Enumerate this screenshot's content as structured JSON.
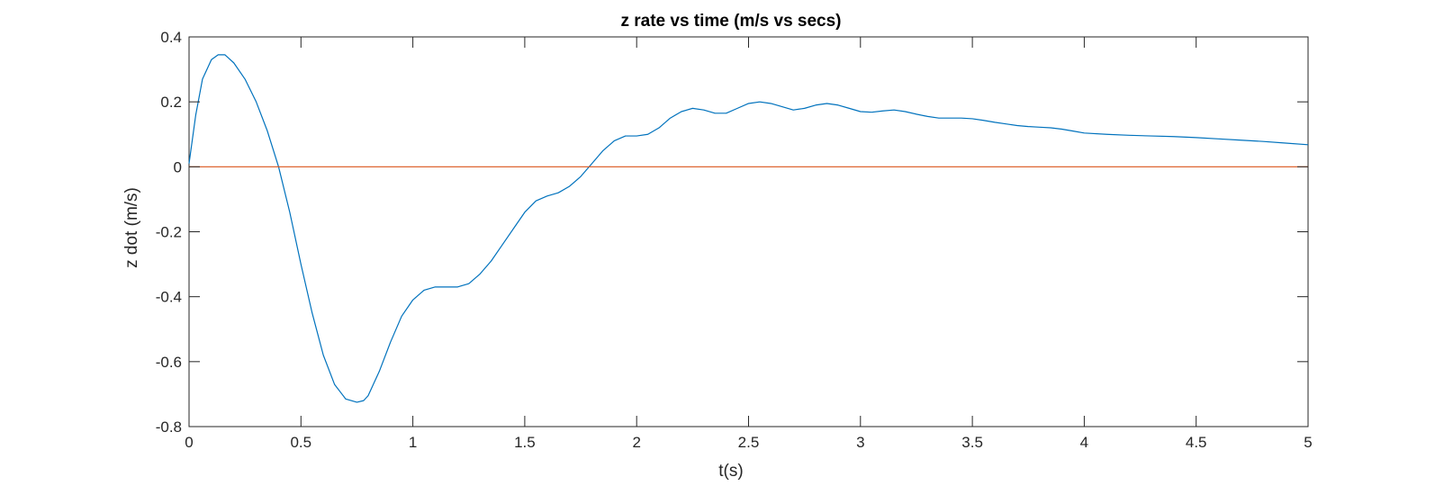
{
  "chart_data": {
    "type": "line",
    "title": "z rate vs time (m/s vs secs)",
    "xlabel": "t(s)",
    "ylabel": "z dot (m/s)",
    "xlim": [
      0,
      5
    ],
    "ylim": [
      -0.8,
      0.4
    ],
    "xticks": [
      0,
      0.5,
      1,
      1.5,
      2,
      2.5,
      3,
      3.5,
      4,
      4.5,
      5
    ],
    "xtick_labels": [
      "0",
      "0.5",
      "1",
      "1.5",
      "2",
      "2.5",
      "3",
      "3.5",
      "4",
      "4.5",
      "5"
    ],
    "yticks": [
      -0.8,
      -0.6,
      -0.4,
      -0.2,
      0,
      0.2,
      0.4
    ],
    "ytick_labels": [
      "-0.8",
      "-0.6",
      "-0.4",
      "-0.2",
      "0",
      "0.2",
      "0.4"
    ],
    "grid": false,
    "box": true,
    "series": [
      {
        "color": "#0072BD",
        "x": [
          0,
          0.03,
          0.06,
          0.1,
          0.13,
          0.16,
          0.2,
          0.25,
          0.3,
          0.35,
          0.4,
          0.45,
          0.5,
          0.55,
          0.6,
          0.65,
          0.7,
          0.75,
          0.78,
          0.8,
          0.85,
          0.9,
          0.95,
          1.0,
          1.05,
          1.1,
          1.15,
          1.2,
          1.25,
          1.3,
          1.35,
          1.4,
          1.45,
          1.5,
          1.55,
          1.6,
          1.65,
          1.7,
          1.75,
          1.8,
          1.85,
          1.9,
          1.95,
          2.0,
          2.05,
          2.1,
          2.15,
          2.2,
          2.25,
          2.3,
          2.35,
          2.4,
          2.45,
          2.5,
          2.55,
          2.6,
          2.65,
          2.7,
          2.75,
          2.8,
          2.85,
          2.9,
          2.95,
          3.0,
          3.05,
          3.1,
          3.15,
          3.2,
          3.25,
          3.3,
          3.35,
          3.4,
          3.45,
          3.5,
          3.55,
          3.6,
          3.65,
          3.7,
          3.75,
          3.8,
          3.85,
          3.9,
          3.95,
          4.0,
          4.1,
          4.2,
          4.3,
          4.4,
          4.5,
          4.6,
          4.7,
          4.8,
          4.9,
          5.0
        ],
        "y": [
          0.01,
          0.16,
          0.27,
          0.33,
          0.345,
          0.345,
          0.32,
          0.27,
          0.2,
          0.11,
          0.0,
          -0.14,
          -0.3,
          -0.45,
          -0.58,
          -0.67,
          -0.715,
          -0.725,
          -0.72,
          -0.705,
          -0.63,
          -0.54,
          -0.46,
          -0.41,
          -0.38,
          -0.37,
          -0.37,
          -0.37,
          -0.36,
          -0.33,
          -0.29,
          -0.24,
          -0.19,
          -0.14,
          -0.105,
          -0.09,
          -0.08,
          -0.06,
          -0.03,
          0.01,
          0.05,
          0.08,
          0.095,
          0.095,
          0.1,
          0.12,
          0.15,
          0.17,
          0.18,
          0.175,
          0.165,
          0.165,
          0.18,
          0.195,
          0.2,
          0.195,
          0.185,
          0.175,
          0.18,
          0.19,
          0.195,
          0.19,
          0.18,
          0.17,
          0.168,
          0.172,
          0.175,
          0.17,
          0.162,
          0.155,
          0.15,
          0.15,
          0.15,
          0.148,
          0.143,
          0.137,
          0.132,
          0.127,
          0.124,
          0.122,
          0.12,
          0.116,
          0.11,
          0.104,
          0.1,
          0.097,
          0.095,
          0.093,
          0.09,
          0.086,
          0.082,
          0.078,
          0.073,
          0.068
        ]
      },
      {
        "color": "#D95319",
        "x": [
          0,
          5
        ],
        "y": [
          0,
          0
        ]
      }
    ]
  }
}
